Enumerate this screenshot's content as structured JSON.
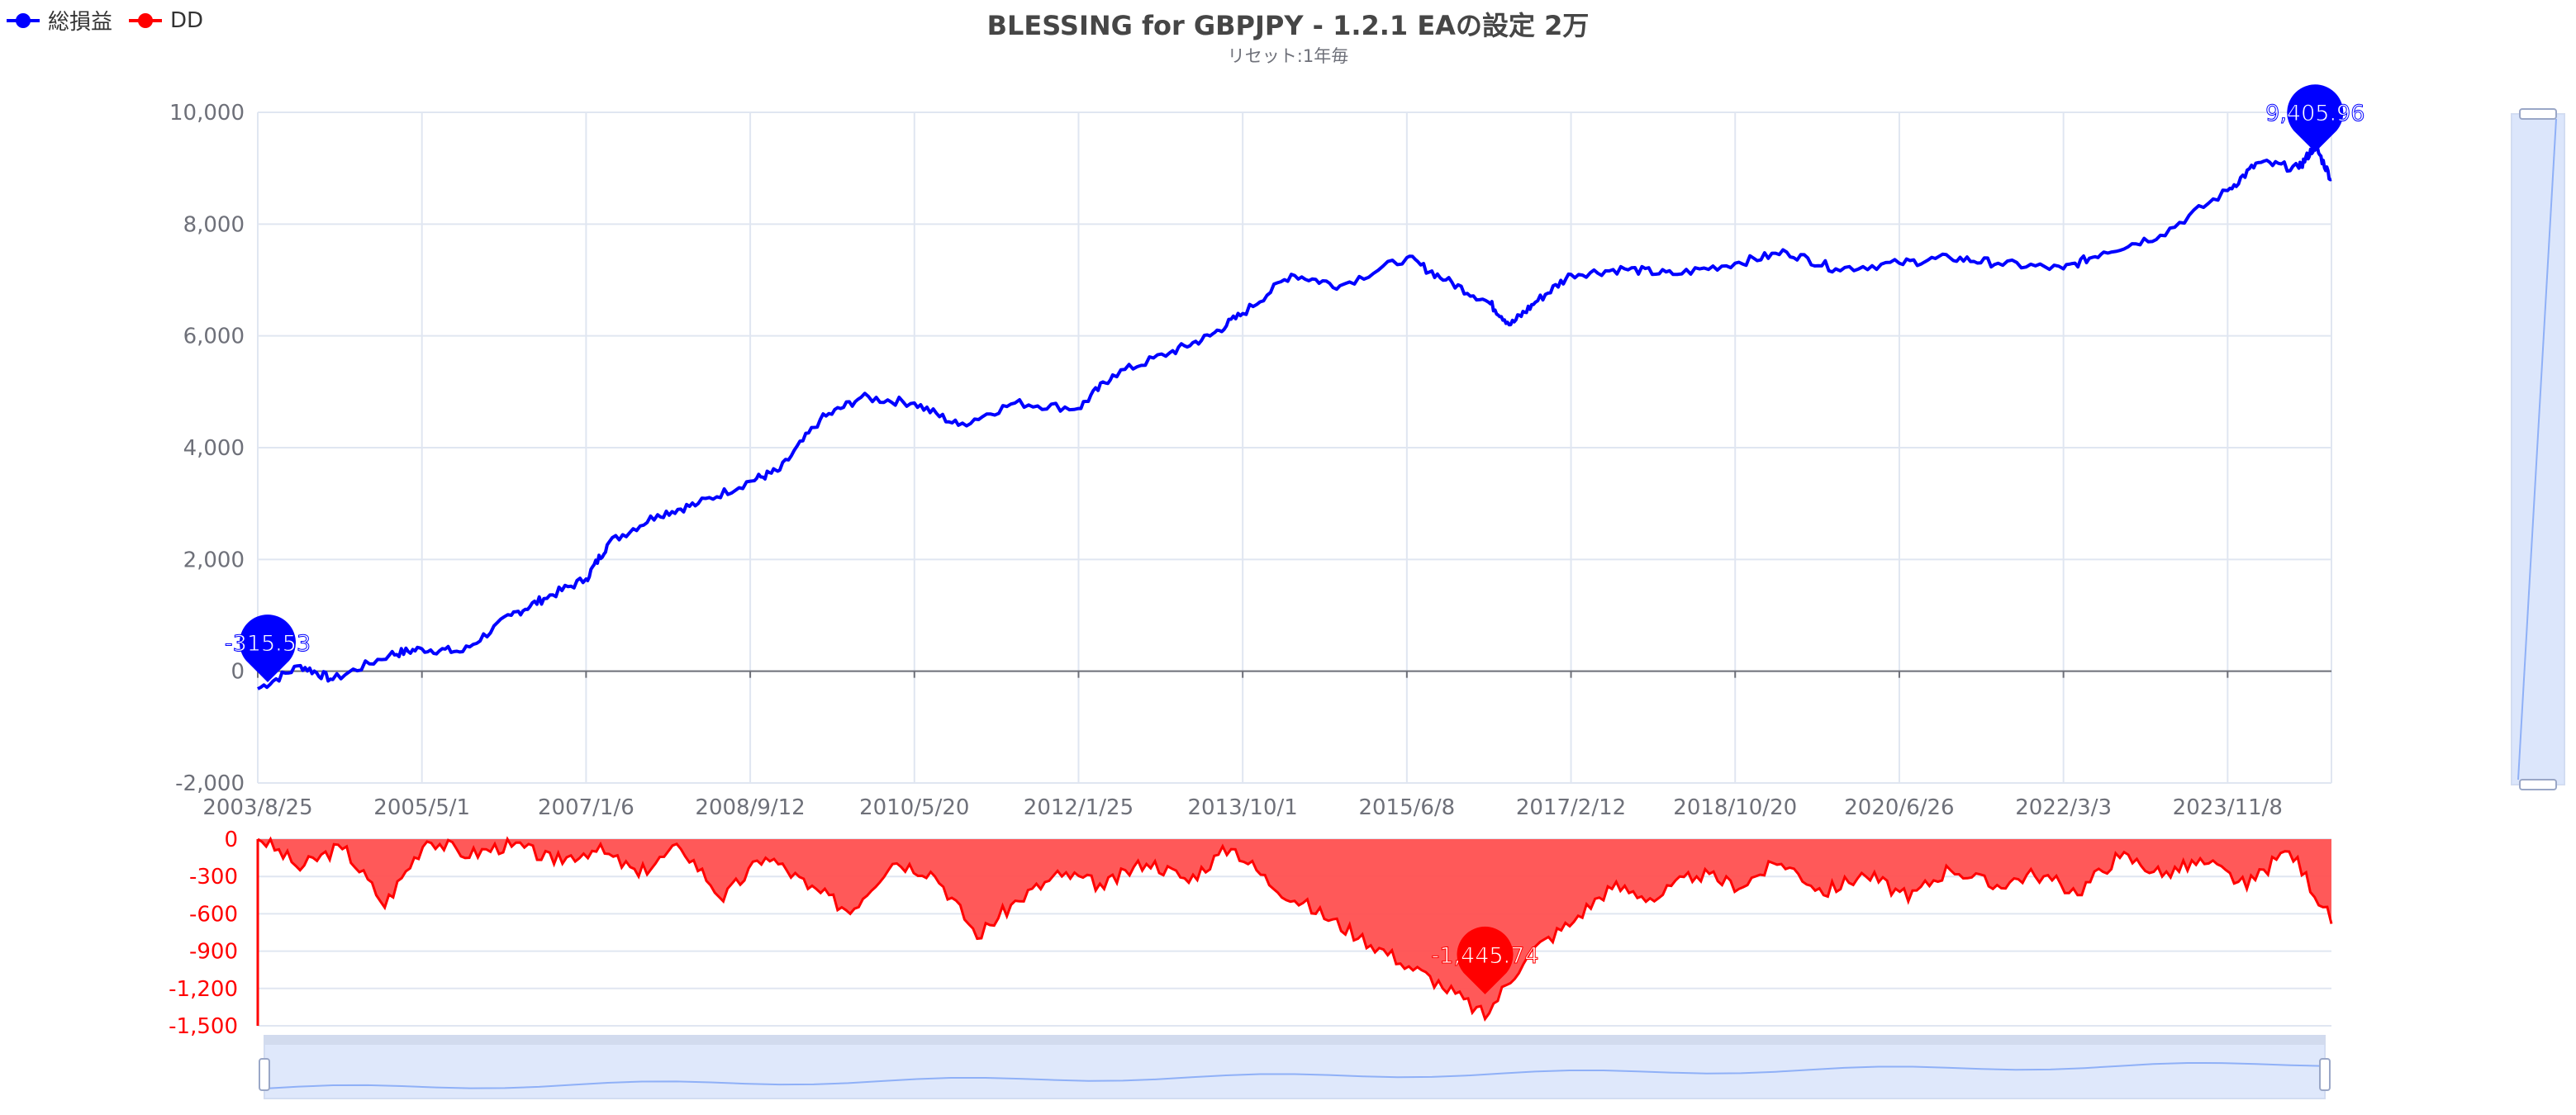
{
  "title": "BLESSING for GBPJPY - 1.2.1 EAの設定 2万",
  "subtitle": "リセット:1年毎",
  "legend": [
    {
      "name": "総損益",
      "color": "#0000ff"
    },
    {
      "name": "DD",
      "color": "#ff0000"
    }
  ],
  "colors": {
    "profit": "#0000ff",
    "dd": "#ff0000",
    "dd_fill": "#ff5050",
    "grid": "#e0e6f1",
    "slider": "#d2dffa"
  },
  "chart_data": [
    {
      "type": "line",
      "series": [
        {
          "name": "総損益"
        }
      ],
      "x": [
        "2003/8/25",
        "2004/2/1",
        "2004/6/1",
        "2005/1/1",
        "2005/5/1",
        "2005/10/1",
        "2006/4/1",
        "2006/8/1",
        "2007/1/6",
        "2007/4/1",
        "2007/10/1",
        "2008/3/1",
        "2008/9/12",
        "2009/1/1",
        "2009/6/1",
        "2009/11/1",
        "2010/5/20",
        "2010/11/1",
        "2011/6/1",
        "2012/1/25",
        "2012/6/1",
        "2013/1/1",
        "2013/6/1",
        "2013/10/1",
        "2014/4/1",
        "2014/10/1",
        "2015/6/8",
        "2015/11/1",
        "2016/4/10",
        "2016/7/1",
        "2016/10/1",
        "2017/2/12",
        "2017/9/1",
        "2018/3/1",
        "2018/10/20",
        "2019/5/1",
        "2019/11/1",
        "2020/6/26",
        "2021/1/1",
        "2021/7/1",
        "2022/3/3",
        "2022/8/1",
        "2023/3/1",
        "2023/11/8",
        "2024/3/1",
        "2024/8/1",
        "2024/10/1",
        "2024/12/1"
      ],
      "values": [
        -315.53,
        100,
        -150,
        300,
        400,
        350,
        1000,
        1300,
        1650,
        2300,
        2800,
        3000,
        3400,
        3600,
        4500,
        4900,
        4800,
        4400,
        4800,
        4700,
        5300,
        5700,
        6000,
        6400,
        7100,
        6900,
        7400,
        7000,
        6600,
        6200,
        6600,
        7100,
        7200,
        7100,
        7300,
        7500,
        7200,
        7300,
        7400,
        7300,
        7200,
        7500,
        7800,
        8600,
        9100,
        9000,
        9405.96,
        8800
      ],
      "ylim": [
        -2000,
        10000
      ],
      "yticks": [
        "10,000",
        "8,000",
        "6,000",
        "4,000",
        "2,000",
        "0",
        "-2,000"
      ],
      "xticks": [
        "2003/8/25",
        "2005/5/1",
        "2007/1/6",
        "2008/9/12",
        "2010/5/20",
        "2012/1/25",
        "2013/10/1",
        "2015/6/8",
        "2017/2/12",
        "2018/10/20",
        "2020/6/26",
        "2022/3/3",
        "2023/11/8"
      ],
      "markpoints": [
        {
          "label": "-315.53"
        },
        {
          "label": "9,405.96"
        }
      ]
    },
    {
      "type": "area",
      "series": [
        {
          "name": "DD"
        }
      ],
      "values": [
        0,
        -250,
        -80,
        -550,
        -20,
        -150,
        -60,
        -200,
        -100,
        -300,
        -80,
        -500,
        -150,
        -400,
        -600,
        -200,
        -300,
        -800,
        -500,
        -300,
        -400,
        -200,
        -350,
        -80,
        -400,
        -600,
        -800,
        -1000,
        -1200,
        -1445.74,
        -950,
        -700,
        -400,
        -500,
        -300,
        -400,
        -200,
        -450,
        -300,
        -500,
        -250,
        -400,
        -300,
        -450,
        -150,
        -300,
        -200,
        -400,
        -100,
        -680
      ],
      "ylim": [
        -1500,
        0
      ],
      "yticks": [
        "0",
        "-300",
        "-600",
        "-900",
        "-1,200",
        "-1,500"
      ],
      "markpoints": [
        {
          "label": "-1,445.74"
        }
      ]
    }
  ]
}
